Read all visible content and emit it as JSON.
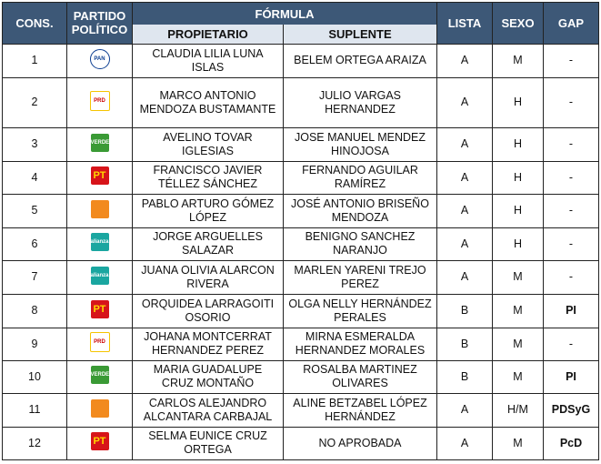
{
  "header": {
    "cons": "CONS.",
    "partido": "PARTIDO POLÍTICO",
    "formula": "FÓRMULA",
    "propietario": "PROPIETARIO",
    "suplente": "SUPLENTE",
    "lista": "LISTA",
    "sexo": "SEXO",
    "gap": "GAP"
  },
  "rows": [
    {
      "cons": 1,
      "logo": "PAN",
      "propietario": "CLAUDIA LILIA LUNA ISLAS",
      "suplente": "BELEM ORTEGA ARAIZA",
      "lista": "A",
      "sexo": "M",
      "gap": "-"
    },
    {
      "cons": 2,
      "logo": "PRD",
      "propietario": "MARCO ANTONIO MENDOZA BUSTAMANTE",
      "suplente": "JULIO VARGAS HERNANDEZ",
      "lista": "A",
      "sexo": "H",
      "gap": "-"
    },
    {
      "cons": 3,
      "logo": "VERDE",
      "propietario": "AVELINO TOVAR IGLESIAS",
      "suplente": "JOSE MANUEL MENDEZ HINOJOSA",
      "lista": "A",
      "sexo": "H",
      "gap": "-"
    },
    {
      "cons": 4,
      "logo": "PT",
      "propietario": "FRANCISCO JAVIER TÉLLEZ SÁNCHEZ",
      "suplente": "FERNANDO AGUILAR RAMÍREZ",
      "lista": "A",
      "sexo": "H",
      "gap": "-"
    },
    {
      "cons": 5,
      "propietario": "PABLO ARTURO GÓMEZ LÓPEZ",
      "suplente": "JOSÉ ANTONIO BRISEÑO MENDOZA",
      "lista": "A",
      "sexo": "H",
      "gap": "-"
    },
    {
      "cons": 6,
      "logo": "alianza",
      "propietario": "JORGE ARGUELLES SALAZAR",
      "suplente": "BENIGNO SANCHEZ NARANJO",
      "lista": "A",
      "sexo": "H",
      "gap": "-"
    },
    {
      "cons": 7,
      "logo": "alianza",
      "propietario": "JUANA OLIVIA ALARCON RIVERA",
      "suplente": "MARLEN YARENI TREJO PEREZ",
      "lista": "A",
      "sexo": "M",
      "gap": "-"
    },
    {
      "cons": 8,
      "logo": "PT",
      "propietario": "ORQUIDEA LARRAGOITI OSORIO",
      "suplente": "OLGA NELLY HERNÁNDEZ PERALES",
      "lista": "B",
      "sexo": "M",
      "gap": "PI"
    },
    {
      "cons": 9,
      "logo": "PRD",
      "propietario": "JOHANA MONTCERRAT HERNANDEZ PEREZ",
      "suplente": "MIRNA ESMERALDA HERNANDEZ MORALES",
      "lista": "B",
      "sexo": "M",
      "gap": "-"
    },
    {
      "cons": 10,
      "logo": "VERDE",
      "propietario": "MARIA GUADALUPE CRUZ MONTAÑO",
      "suplente": "ROSALBA MARTINEZ OLIVARES",
      "lista": "B",
      "sexo": "M",
      "gap": "PI"
    },
    {
      "cons": 11,
      "propietario": "CARLOS ALEJANDRO ALCANTARA CARBAJAL",
      "suplente": "ALINE BETZABEL LÓPEZ HERNÁNDEZ",
      "lista": "A",
      "sexo": "H/M",
      "gap": "PDSyG"
    },
    {
      "cons": 12,
      "logo": "PT",
      "propietario": "SELMA EUNICE CRUZ ORTEGA",
      "suplente": "NO APROBADA",
      "lista": "A",
      "sexo": "M",
      "gap": "PcD"
    }
  ]
}
